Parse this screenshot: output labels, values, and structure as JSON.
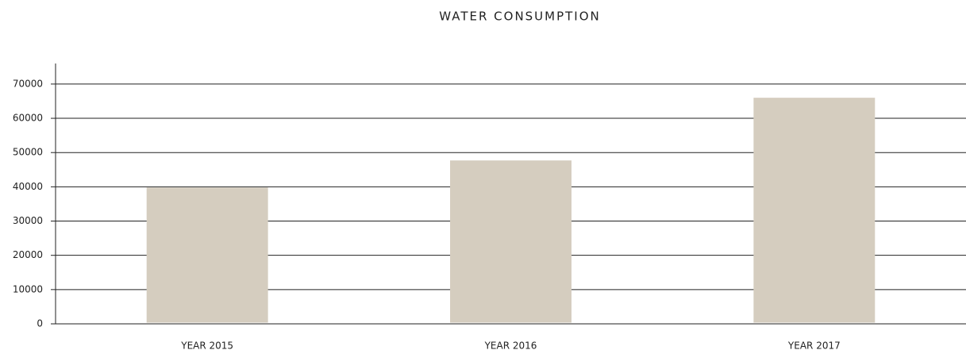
{
  "chart_data": {
    "type": "bar",
    "title": "WATER CONSUMPTION",
    "categories": [
      "YEAR 2015",
      "YEAR 2016",
      "YEAR 2017"
    ],
    "values": [
      39800,
      47700,
      66000
    ],
    "color": "#d5cdbf",
    "ylim": [
      0,
      76000
    ],
    "yticks": [
      0,
      10000,
      20000,
      30000,
      40000,
      50000,
      60000,
      70000
    ],
    "grid": true
  }
}
